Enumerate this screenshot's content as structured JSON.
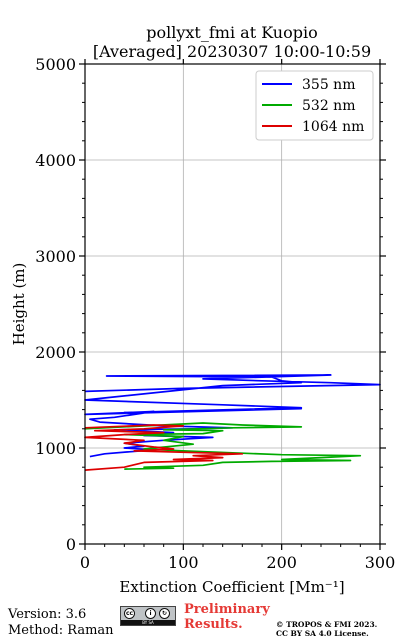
{
  "chart_data": {
    "type": "line",
    "title": "pollyxt_fmi at Kuopio",
    "subtitle": "[Averaged] 20230307 10:00-10:59",
    "xlabel": "Extinction Coefficient [Mm⁻¹]",
    "ylabel": "Height (m)",
    "xlim": [
      0,
      300
    ],
    "ylim": [
      0,
      5000
    ],
    "xticks": [
      0,
      100,
      200,
      300
    ],
    "yticks": [
      0,
      1000,
      2000,
      3000,
      4000,
      5000
    ],
    "grid": true,
    "legend_position": "top-right",
    "series": [
      {
        "name": "355 nm",
        "color": "#0000ff",
        "points": [
          [
            0,
            1590
          ],
          [
            95,
            1620
          ],
          [
            300,
            1660
          ],
          [
            250,
            1680
          ],
          [
            180,
            1700
          ],
          [
            120,
            1720
          ],
          [
            250,
            1760
          ],
          [
            22,
            1750
          ],
          [
            190,
            1740
          ],
          [
            200,
            1700
          ],
          [
            220,
            1680
          ],
          [
            140,
            1650
          ],
          [
            0,
            1500
          ],
          [
            140,
            1450
          ],
          [
            220,
            1420
          ],
          [
            150,
            1400
          ],
          [
            40,
            1370
          ],
          [
            220,
            1410
          ],
          [
            0,
            1350
          ],
          [
            70,
            1380
          ],
          [
            30,
            1320
          ],
          [
            5,
            1300
          ],
          [
            15,
            1270
          ],
          [
            80,
            1230
          ],
          [
            150,
            1210
          ],
          [
            110,
            1200
          ],
          [
            30,
            1190
          ],
          [
            90,
            1160
          ],
          [
            60,
            1130
          ],
          [
            130,
            1110
          ],
          [
            80,
            1080
          ],
          [
            40,
            1050
          ],
          [
            60,
            1020
          ],
          [
            40,
            1000
          ],
          [
            70,
            980
          ],
          [
            45,
            960
          ],
          [
            20,
            940
          ],
          [
            5,
            910
          ]
        ]
      },
      {
        "name": "532 nm",
        "color": "#00aa00",
        "points": [
          [
            0,
            1200
          ],
          [
            120,
            1260
          ],
          [
            160,
            1240
          ],
          [
            220,
            1220
          ],
          [
            150,
            1210
          ],
          [
            80,
            1190
          ],
          [
            140,
            1180
          ],
          [
            120,
            1150
          ],
          [
            40,
            1140
          ],
          [
            100,
            1120
          ],
          [
            80,
            1080
          ],
          [
            110,
            1040
          ],
          [
            60,
            990
          ],
          [
            100,
            970
          ],
          [
            150,
            950
          ],
          [
            200,
            930
          ],
          [
            280,
            920
          ],
          [
            240,
            900
          ],
          [
            200,
            880
          ],
          [
            270,
            870
          ],
          [
            190,
            860
          ],
          [
            140,
            850
          ],
          [
            120,
            820
          ],
          [
            60,
            800
          ],
          [
            90,
            790
          ],
          [
            40,
            780
          ]
        ]
      },
      {
        "name": "1064 nm",
        "color": "#dd0000",
        "points": [
          [
            0,
            1210
          ],
          [
            70,
            1240
          ],
          [
            100,
            1230
          ],
          [
            60,
            1200
          ],
          [
            10,
            1180
          ],
          [
            80,
            1160
          ],
          [
            40,
            1140
          ],
          [
            0,
            1110
          ],
          [
            60,
            1080
          ],
          [
            40,
            1050
          ],
          [
            70,
            1010
          ],
          [
            90,
            990
          ],
          [
            50,
            970
          ],
          [
            120,
            950
          ],
          [
            160,
            940
          ],
          [
            110,
            920
          ],
          [
            140,
            900
          ],
          [
            90,
            880
          ],
          [
            130,
            870
          ],
          [
            60,
            850
          ],
          [
            40,
            800
          ],
          [
            0,
            770
          ]
        ]
      }
    ]
  },
  "footer": {
    "version": "Version: 3.6",
    "method": "Method: Raman",
    "preliminary_line1": "Preliminary",
    "preliminary_line2": "Results.",
    "copyright_line1": "© TROPOS & FMI 2023.",
    "copyright_line2": "CC BY SA 4.0 License.",
    "cc_badge_text": "BY  SA"
  }
}
